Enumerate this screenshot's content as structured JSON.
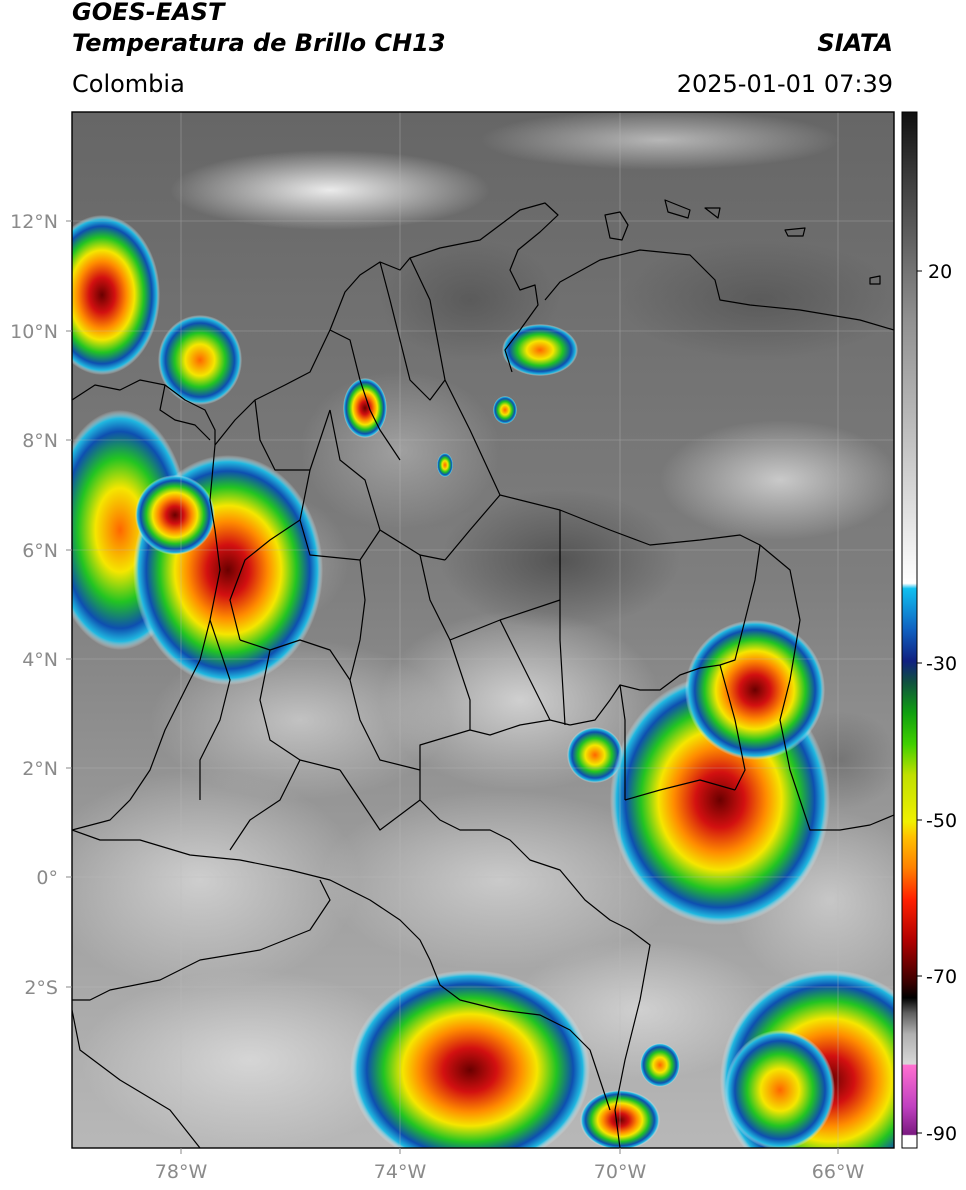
{
  "header": {
    "satellite": "GOES-EAST",
    "product": "Temperatura de Brillo CH13",
    "brand": "SIATA",
    "region": "Colombia",
    "datetime": "2025-01-01 07:39"
  },
  "map": {
    "lon_range": [
      -80,
      -65
    ],
    "lat_range": [
      -5,
      14
    ],
    "lat_ticks": [
      {
        "value": 12,
        "label": "12°N"
      },
      {
        "value": 10,
        "label": "10°N"
      },
      {
        "value": 8,
        "label": "8°N"
      },
      {
        "value": 6,
        "label": "6°N"
      },
      {
        "value": 4,
        "label": "4°N"
      },
      {
        "value": 2,
        "label": "2°N"
      },
      {
        "value": 0,
        "label": "0°"
      },
      {
        "value": -2,
        "label": "2°S"
      }
    ],
    "lon_ticks": [
      {
        "value": -78,
        "label": "78°W"
      },
      {
        "value": -74,
        "label": "74°W"
      },
      {
        "value": -70,
        "label": "70°W"
      },
      {
        "value": -66,
        "label": "66°W"
      }
    ],
    "grid": true
  },
  "colorbar": {
    "vmin": -92,
    "vmax": 50,
    "ticks": [
      {
        "value": 20,
        "label": "20"
      },
      {
        "value": -30,
        "label": "-30"
      },
      {
        "value": -50,
        "label": "-50"
      },
      {
        "value": -70,
        "label": "-70"
      },
      {
        "value": -90,
        "label": "-90"
      }
    ]
  },
  "colors": {
    "background_gray": "#7a7a7a",
    "border": "#000000",
    "cold_red": "#d01010",
    "cold_yellow": "#f0e000",
    "cold_green": "#20c020",
    "cold_blue": "#1040a0"
  }
}
